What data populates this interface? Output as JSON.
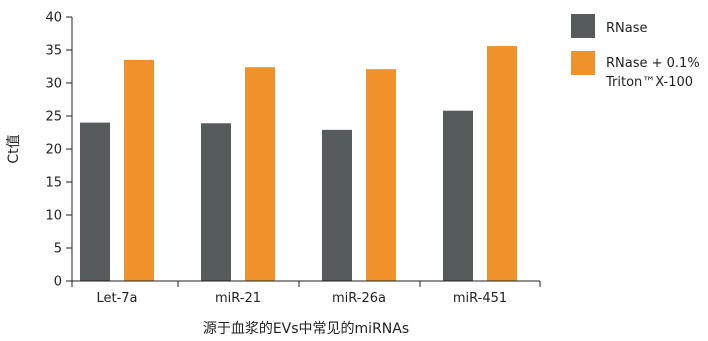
{
  "chart_data": {
    "type": "bar",
    "categories": [
      "Let-7a",
      "miR-21",
      "miR-26a",
      "miR-451"
    ],
    "series": [
      {
        "name": "RNase",
        "color": "#555a5a",
        "values": [
          24.0,
          23.9,
          22.9,
          25.8
        ]
      },
      {
        "name_lines": [
          "RNase + 0.1%",
          "Triton™X-100"
        ],
        "color": "#f0922a",
        "values": [
          33.5,
          32.4,
          32.1,
          35.6
        ]
      }
    ],
    "xlabel": "源于血浆的EVs中常见的miRNAs",
    "ylabel": "Ct值",
    "ylim": [
      0,
      40
    ],
    "yticks": [
      "0",
      "5",
      "10",
      "15",
      "20",
      "25",
      "30",
      "35",
      "40"
    ],
    "grid": false,
    "legend_position": "right"
  }
}
